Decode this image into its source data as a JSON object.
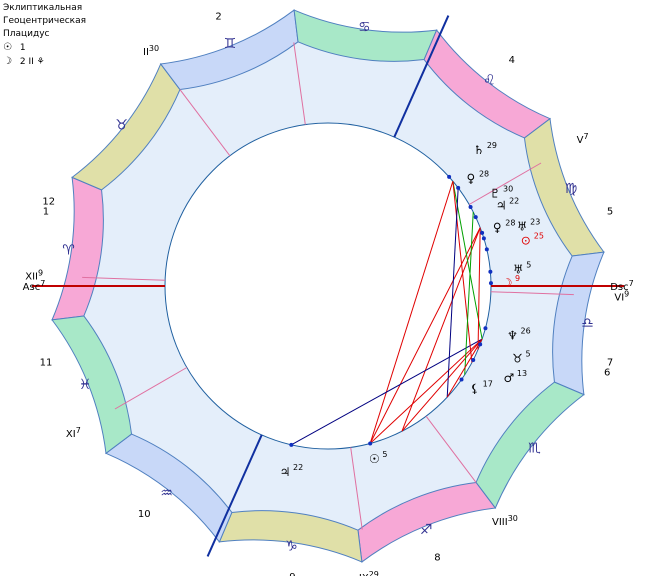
{
  "legend": {
    "line1": "Эклиптикальная",
    "line2": "Геоцентрическая",
    "line3": "Плацидус",
    "sun_sym": "☉",
    "sun_val": "1",
    "moon_sym": "☽",
    "moon_val": "2 II",
    "extra_sym": "⚘"
  },
  "colors": {
    "pink": "#f7a8d6",
    "green": "#a8e8c8",
    "blue": "#c8d8f8",
    "yellow": "#e0e0a8",
    "inner": "#e4eefa",
    "aspect_red": "#e00000",
    "aspect_blue": "#000080",
    "aspect_green": "#00a000"
  },
  "signs": [
    {
      "glyph": "♈",
      "color": "pink"
    },
    {
      "glyph": "♉",
      "color": "yellow"
    },
    {
      "glyph": "♊",
      "color": "blue"
    },
    {
      "glyph": "♋",
      "color": "green"
    },
    {
      "glyph": "♌",
      "color": "pink"
    },
    {
      "glyph": "♍",
      "color": "yellow"
    },
    {
      "glyph": "♎",
      "color": "blue"
    },
    {
      "glyph": "♏",
      "color": "green"
    },
    {
      "glyph": "♐",
      "color": "pink"
    },
    {
      "glyph": "♑",
      "color": "yellow"
    },
    {
      "glyph": "♒",
      "color": "blue"
    },
    {
      "glyph": "♓",
      "color": "green"
    }
  ],
  "house_numbers": [
    "1",
    "2",
    "3",
    "4",
    "5",
    "6",
    "7",
    "8",
    "9",
    "10",
    "11",
    "12"
  ],
  "cusps": [
    {
      "name": "Asc",
      "deg": "7"
    },
    {
      "name": "II",
      "deg": "30"
    },
    {
      "name": "III",
      "deg": "29"
    },
    {
      "name": "",
      "deg": ""
    },
    {
      "name": "V",
      "deg": "7"
    },
    {
      "name": "VI",
      "deg": "9"
    },
    {
      "name": "Dsc",
      "deg": "7"
    },
    {
      "name": "VIII",
      "deg": "30"
    },
    {
      "name": "IX",
      "deg": "29"
    },
    {
      "name": "",
      "deg": ""
    },
    {
      "name": "XI",
      "deg": "7"
    },
    {
      "name": "XII",
      "deg": "9"
    }
  ],
  "planets": [
    {
      "glyph": "☉",
      "deg": "5",
      "color": "#000"
    },
    {
      "glyph": "♃",
      "deg": "22",
      "color": "#000"
    },
    {
      "glyph": "♂",
      "deg": "13",
      "color": "#000"
    },
    {
      "glyph": "⚸",
      "deg": "17",
      "color": "#000"
    },
    {
      "glyph": "♆",
      "deg": "26",
      "color": "#000"
    },
    {
      "glyph": "♉",
      "deg": "5",
      "color": "#000"
    },
    {
      "glyph": "☽",
      "deg": "9",
      "color": "#e00000"
    },
    {
      "glyph": "♅",
      "deg": "5",
      "color": "#000"
    },
    {
      "glyph": "⊙",
      "deg": "25",
      "color": "#e00000"
    },
    {
      "glyph": "♀",
      "deg": "28",
      "color": "#000"
    },
    {
      "glyph": "♃",
      "deg": "22",
      "color": "#000"
    },
    {
      "glyph": "♅",
      "deg": "23",
      "color": "#000"
    },
    {
      "glyph": "♀",
      "deg": "28",
      "color": "#000"
    },
    {
      "glyph": "♇",
      "deg": "30",
      "color": "#000"
    },
    {
      "glyph": "♄",
      "deg": "29",
      "color": "#000"
    }
  ]
}
